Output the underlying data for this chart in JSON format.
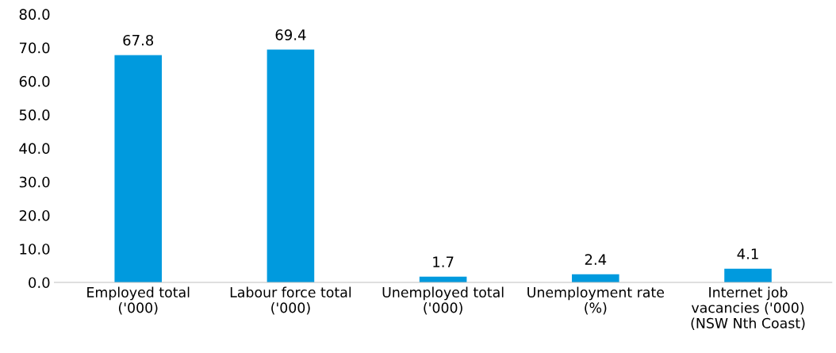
{
  "chart_data": {
    "type": "bar",
    "categories": [
      "Employed total\n('000)",
      "Labour force total\n('000)",
      "Unemployed total\n('000)",
      "Unemployment rate\n(%)",
      "Internet job\nvacancies ('000)\n(NSW Nth Coast)"
    ],
    "values": [
      67.8,
      69.4,
      1.7,
      2.4,
      4.1
    ],
    "color": "#009ade",
    "ylim": [
      0,
      80
    ],
    "yticks": [
      {
        "value": 0,
        "label": "0.0"
      },
      {
        "value": 10,
        "label": "10.0"
      },
      {
        "value": 20,
        "label": "20.0"
      },
      {
        "value": 30,
        "label": "30.0"
      },
      {
        "value": 40,
        "label": "40.0"
      },
      {
        "value": 50,
        "label": "50.0"
      },
      {
        "value": 60,
        "label": "60.0"
      },
      {
        "value": 70,
        "label": "70.0"
      },
      {
        "value": 80,
        "label": "80.0"
      }
    ],
    "data_labels": true,
    "grid": false,
    "legend": false
  }
}
